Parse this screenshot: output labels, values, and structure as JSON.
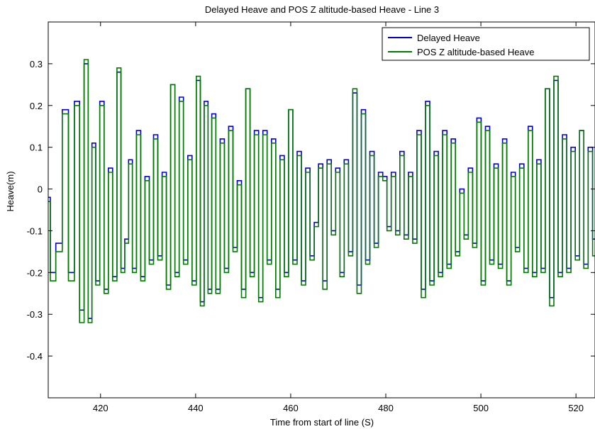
{
  "chart_data": {
    "type": "line",
    "title": "Delayed Heave and POS Z altitude-based Heave - Line 3",
    "xlabel": "Time from start of line (S)",
    "ylabel": "Heave(m)",
    "xlim": [
      409,
      524
    ],
    "ylim": [
      -0.5,
      0.4
    ],
    "xticks": [
      420,
      440,
      460,
      480,
      500,
      520
    ],
    "yticks": [
      -0.4,
      -0.3,
      -0.2,
      -0.1,
      0,
      0.1,
      0.2,
      0.3
    ],
    "ytick_labels": [
      "-0.4",
      "-0.3",
      "-0.2",
      "-0.1",
      "0",
      "0.1",
      "0.2",
      "0.3"
    ],
    "grid": false,
    "legend_position": "top-right",
    "series": [
      {
        "name": "Delayed Heave",
        "color": "#0000cc",
        "x": [
          409,
          409.9,
          411.3,
          412.6,
          413.9,
          415.1,
          416.1,
          417,
          417.8,
          418.6,
          419.4,
          420.3,
          421.2,
          422.1,
          423,
          423.9,
          424.7,
          425.5,
          426.3,
          427.1,
          428,
          428.9,
          429.8,
          430.7,
          431.6,
          432.5,
          433.4,
          434.3,
          435.2,
          436.1,
          437,
          437.9,
          438.8,
          439.7,
          440.6,
          441.4,
          442.2,
          443,
          443.8,
          444.7,
          445.6,
          446.5,
          447.4,
          448.3,
          449.2,
          450.1,
          451,
          451.9,
          452.8,
          453.7,
          454.6,
          455.5,
          456.4,
          457.3,
          458.2,
          459.1,
          460,
          460.9,
          461.8,
          462.7,
          463.6,
          464.5,
          465.4,
          466.3,
          467.2,
          468.1,
          469,
          469.9,
          470.8,
          471.7,
          472.6,
          473.5,
          474.4,
          475.3,
          476.2,
          477.1,
          478,
          478.9,
          479.8,
          480.7,
          481.6,
          482.5,
          483.4,
          484.3,
          485.2,
          486.1,
          487,
          487.9,
          488.8,
          489.7,
          490.6,
          491.5,
          492.4,
          493.3,
          494.2,
          495.1,
          496,
          496.9,
          497.8,
          498.7,
          499.6,
          500.5,
          501.4,
          502.3,
          503.2,
          504.1,
          505,
          505.9,
          506.8,
          507.7,
          508.6,
          509.5,
          510.4,
          511.3,
          512.2,
          513.1,
          514,
          514.9,
          515.8,
          516.7,
          517.6,
          518.5,
          519.4,
          520.3,
          521.2,
          522.1,
          523,
          524
        ],
        "y": [
          -0.02,
          -0.2,
          -0.13,
          0.19,
          -0.2,
          0.21,
          -0.29,
          0.3,
          -0.31,
          0.11,
          -0.22,
          0.21,
          -0.24,
          0.05,
          -0.21,
          0.28,
          -0.19,
          -0.12,
          0.07,
          -0.19,
          0.14,
          -0.21,
          0.03,
          -0.17,
          0.13,
          -0.16,
          0.04,
          -0.23,
          0.25,
          -0.2,
          0.22,
          -0.17,
          0.08,
          -0.22,
          0.26,
          -0.27,
          0.21,
          -0.24,
          0.18,
          -0.24,
          0.12,
          -0.19,
          0.15,
          -0.14,
          0.02,
          -0.24,
          0.24,
          -0.2,
          0.14,
          -0.26,
          0.14,
          -0.17,
          0.12,
          -0.24,
          0.08,
          -0.2,
          0.19,
          -0.17,
          0.09,
          -0.22,
          0.05,
          -0.16,
          -0.08,
          0.06,
          -0.22,
          0.07,
          -0.1,
          0.05,
          -0.2,
          0.07,
          -0.15,
          0.23,
          -0.23,
          0.19,
          -0.17,
          0.09,
          -0.13,
          0.04,
          0.03,
          -0.09,
          0.04,
          -0.1,
          0.09,
          -0.11,
          0.04,
          -0.12,
          0.14,
          -0.24,
          0.21,
          -0.22,
          0.09,
          -0.2,
          0.14,
          -0.18,
          0.12,
          -0.15,
          0.0,
          -0.11,
          0.05,
          -0.13,
          0.17,
          -0.22,
          0.15,
          -0.17,
          0.06,
          -0.18,
          0.12,
          -0.22,
          0.04,
          -0.14,
          0.06,
          -0.19,
          0.15,
          -0.2,
          0.07,
          -0.19,
          0.24,
          -0.26,
          0.26,
          -0.2,
          0.13,
          -0.19,
          0.1,
          -0.16,
          0.14,
          -0.18,
          0.1,
          -0.12
        ]
      },
      {
        "name": "POS Z altitude-based Heave",
        "color": "#007a00",
        "x": [
          409,
          409.9,
          411.3,
          412.6,
          413.9,
          415.1,
          416.1,
          417,
          417.8,
          418.6,
          419.4,
          420.3,
          421.2,
          422.1,
          423,
          423.9,
          424.7,
          425.5,
          426.3,
          427.1,
          428,
          428.9,
          429.8,
          430.7,
          431.6,
          432.5,
          433.4,
          434.3,
          435.2,
          436.1,
          437,
          437.9,
          438.8,
          439.7,
          440.6,
          441.4,
          442.2,
          443,
          443.8,
          444.7,
          445.6,
          446.5,
          447.4,
          448.3,
          449.2,
          450.1,
          451,
          451.9,
          452.8,
          453.7,
          454.6,
          455.5,
          456.4,
          457.3,
          458.2,
          459.1,
          460,
          460.9,
          461.8,
          462.7,
          463.6,
          464.5,
          465.4,
          466.3,
          467.2,
          468.1,
          469,
          469.9,
          470.8,
          471.7,
          472.6,
          473.5,
          474.4,
          475.3,
          476.2,
          477.1,
          478,
          478.9,
          479.8,
          480.7,
          481.6,
          482.5,
          483.4,
          484.3,
          485.2,
          486.1,
          487,
          487.9,
          488.8,
          489.7,
          490.6,
          491.5,
          492.4,
          493.3,
          494.2,
          495.1,
          496,
          496.9,
          497.8,
          498.7,
          499.6,
          500.5,
          501.4,
          502.3,
          503.2,
          504.1,
          505,
          505.9,
          506.8,
          507.7,
          508.6,
          509.5,
          510.4,
          511.3,
          512.2,
          513.1,
          514,
          514.9,
          515.8,
          516.7,
          517.6,
          518.5,
          519.4,
          520.3,
          521.2,
          522.1,
          523,
          524
        ],
        "y": [
          -0.03,
          -0.22,
          -0.15,
          0.18,
          -0.22,
          0.2,
          -0.32,
          0.31,
          -0.32,
          0.1,
          -0.23,
          0.2,
          -0.25,
          0.04,
          -0.22,
          0.29,
          -0.2,
          -0.13,
          0.06,
          -0.2,
          0.13,
          -0.22,
          0.02,
          -0.18,
          0.12,
          -0.17,
          0.03,
          -0.24,
          0.25,
          -0.21,
          0.21,
          -0.18,
          0.07,
          -0.23,
          0.27,
          -0.28,
          0.2,
          -0.25,
          0.17,
          -0.25,
          0.11,
          -0.2,
          0.14,
          -0.15,
          0.01,
          -0.26,
          0.24,
          -0.21,
          0.13,
          -0.27,
          0.13,
          -0.18,
          0.11,
          -0.26,
          0.07,
          -0.21,
          0.19,
          -0.18,
          0.08,
          -0.23,
          0.04,
          -0.17,
          -0.09,
          0.05,
          -0.24,
          0.06,
          -0.11,
          0.04,
          -0.21,
          0.06,
          -0.16,
          0.24,
          -0.25,
          0.18,
          -0.18,
          0.08,
          -0.14,
          0.03,
          0.02,
          -0.1,
          0.03,
          -0.11,
          0.08,
          -0.12,
          0.03,
          -0.13,
          0.13,
          -0.26,
          0.2,
          -0.23,
          0.08,
          -0.21,
          0.13,
          -0.19,
          0.11,
          -0.16,
          -0.01,
          -0.12,
          0.04,
          -0.14,
          0.16,
          -0.23,
          0.14,
          -0.18,
          0.05,
          -0.19,
          0.11,
          -0.23,
          0.03,
          -0.15,
          0.05,
          -0.2,
          0.14,
          -0.21,
          0.06,
          -0.2,
          0.24,
          -0.28,
          0.27,
          -0.21,
          0.12,
          -0.2,
          0.09,
          -0.17,
          0.14,
          -0.19,
          0.09,
          -0.16
        ]
      }
    ]
  }
}
